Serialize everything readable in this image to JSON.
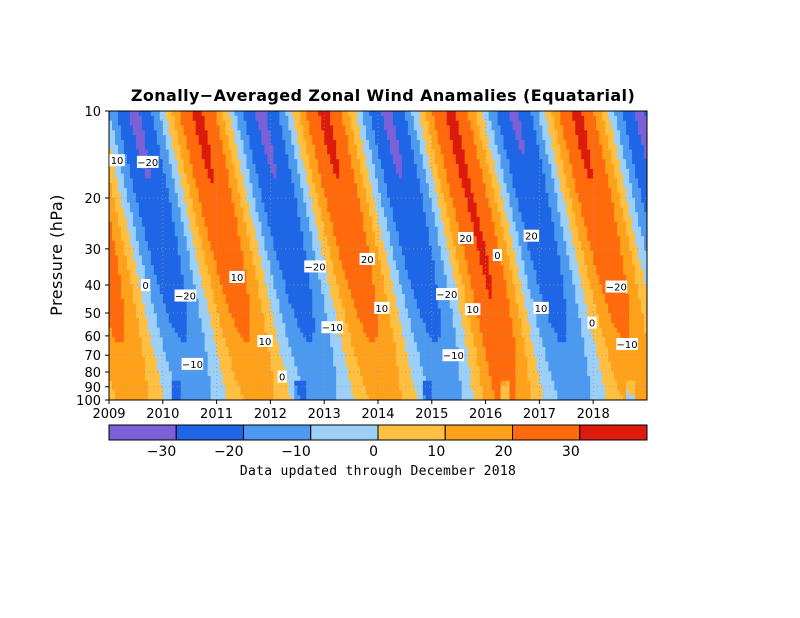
{
  "chart_data": {
    "type": "heatmap",
    "title": "Zonally−Averaged Zonal Wind Anamalies (Equatarial)",
    "ylabel": "Pressure (hPa)",
    "xlabel": "",
    "y_scale": "log",
    "y_direction": "pressure decreasing upward",
    "ylim": [
      100,
      10
    ],
    "xlim": [
      2009,
      2019
    ],
    "x_ticks": [
      2009,
      2010,
      2011,
      2012,
      2013,
      2014,
      2015,
      2016,
      2017,
      2018
    ],
    "x_tick_labels": [
      "2009",
      "2010",
      "2011",
      "2012",
      "2013",
      "2014",
      "2015",
      "2016",
      "2017",
      "2018"
    ],
    "y_ticks": [
      10,
      20,
      30,
      40,
      50,
      60,
      70,
      80,
      90,
      100
    ],
    "y_tick_labels": [
      "10",
      "20",
      "30",
      "40",
      "50",
      "60",
      "70",
      "80",
      "90",
      "100"
    ],
    "grid": true,
    "contour_levels": [
      -30,
      -20,
      -10,
      0,
      10,
      20,
      30
    ],
    "colorbar": {
      "levels": [
        -30,
        -20,
        -10,
        0,
        10,
        20,
        30
      ],
      "tick_labels": [
        "−30",
        "−20",
        "−10",
        "0",
        "10",
        "20",
        "30"
      ],
      "colors": [
        "#7b61d8",
        "#1f66e6",
        "#4c9af0",
        "#9dd0f8",
        "#ffbf40",
        "#ffa11a",
        "#ff6a0d",
        "#dc1b0c"
      ]
    },
    "contour_labels": [
      {
        "text": "10",
        "year": 2009.15,
        "p": 14.8
      },
      {
        "text": "−20",
        "year": 2009.72,
        "p": 15.0
      },
      {
        "text": "0",
        "year": 2009.68,
        "p": 40.0
      },
      {
        "text": "−20",
        "year": 2010.42,
        "p": 43.5
      },
      {
        "text": "−10",
        "year": 2010.55,
        "p": 75.0
      },
      {
        "text": "10",
        "year": 2011.38,
        "p": 37.5
      },
      {
        "text": "10",
        "year": 2011.9,
        "p": 62.5
      },
      {
        "text": "0",
        "year": 2012.22,
        "p": 83.0
      },
      {
        "text": "−20",
        "year": 2012.83,
        "p": 34.5
      },
      {
        "text": "−10",
        "year": 2013.15,
        "p": 56.0
      },
      {
        "text": "20",
        "year": 2013.8,
        "p": 32.5
      },
      {
        "text": "10",
        "year": 2014.07,
        "p": 48.0
      },
      {
        "text": "−20",
        "year": 2015.28,
        "p": 43.0
      },
      {
        "text": "−10",
        "year": 2015.4,
        "p": 70.0
      },
      {
        "text": "20",
        "year": 2015.63,
        "p": 27.5
      },
      {
        "text": "10",
        "year": 2015.76,
        "p": 48.5
      },
      {
        "text": "0",
        "year": 2016.22,
        "p": 31.5
      },
      {
        "text": "20",
        "year": 2016.85,
        "p": 27.0
      },
      {
        "text": "10",
        "year": 2017.03,
        "p": 48.0
      },
      {
        "text": "0",
        "year": 2017.98,
        "p": 54.0
      },
      {
        "text": "−20",
        "year": 2018.43,
        "p": 40.5
      },
      {
        "text": "−10",
        "year": 2018.63,
        "p": 64.0
      }
    ],
    "footnote": "Data updated through December 2018",
    "colors": {
      "neg30": "#7b61d8",
      "neg20": "#1f66e6",
      "neg10": "#4c9af0",
      "neg0": "#9dd0f8",
      "pos0": "#ffbf40",
      "pos10": "#ffa11a",
      "pos20": "#ff6a0d",
      "pos30": "#dc1b0c"
    }
  }
}
